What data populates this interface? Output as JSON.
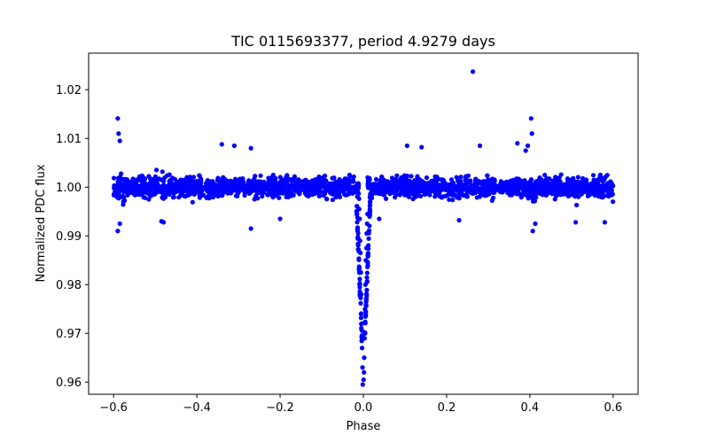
{
  "chart_data": {
    "type": "scatter",
    "title": "TIC 0115693377, period 4.9279 days",
    "xlabel": "Phase",
    "ylabel": "Normalized PDC flux",
    "xlim": [
      -0.66,
      0.66
    ],
    "ylim": [
      0.9575,
      1.0275
    ],
    "x_ticks": [
      -0.6,
      -0.4,
      -0.2,
      0.0,
      0.2,
      0.4,
      0.6
    ],
    "x_tick_labels": [
      "−0.6",
      "−0.4",
      "−0.2",
      "0.0",
      "0.2",
      "0.4",
      "0.6"
    ],
    "y_ticks": [
      0.96,
      0.97,
      0.98,
      0.99,
      1.0,
      1.01,
      1.02
    ],
    "y_tick_labels": [
      "0.96",
      "0.97",
      "0.98",
      "0.99",
      "1.00",
      "1.01",
      "1.02"
    ],
    "grid": false,
    "legend": null,
    "series": [
      {
        "name": "PDC flux",
        "color": "#0000ff",
        "marker": "circle",
        "baseline": {
          "phase_range": [
            -0.6,
            0.6
          ],
          "flux_center": 1.0,
          "flux_scatter": 0.0025
        },
        "transit": {
          "phase_center": 0.0,
          "phase_halfwidth": 0.018,
          "depth_min_flux": 0.9595
        },
        "notable_points": [
          {
            "x": 0.263,
            "y": 1.0237
          },
          {
            "x": -0.59,
            "y": 1.0141
          },
          {
            "x": -0.588,
            "y": 1.011
          },
          {
            "x": -0.585,
            "y": 1.0095
          },
          {
            "x": 0.403,
            "y": 1.0141
          },
          {
            "x": 0.405,
            "y": 1.011
          },
          {
            "x": 0.395,
            "y": 1.0085
          },
          {
            "x": 0.39,
            "y": 1.0075
          },
          {
            "x": 0.37,
            "y": 1.009
          },
          {
            "x": -0.34,
            "y": 1.0088
          },
          {
            "x": -0.31,
            "y": 1.0085
          },
          {
            "x": -0.27,
            "y": 1.008
          },
          {
            "x": 0.105,
            "y": 1.0085
          },
          {
            "x": 0.14,
            "y": 1.0082
          },
          {
            "x": 0.28,
            "y": 1.0085
          },
          {
            "x": -0.59,
            "y": 0.991
          },
          {
            "x": -0.585,
            "y": 0.9925
          },
          {
            "x": 0.407,
            "y": 0.991
          },
          {
            "x": 0.413,
            "y": 0.9925
          },
          {
            "x": -0.27,
            "y": 0.9915
          },
          {
            "x": 0.58,
            "y": 0.9928
          },
          {
            "x": -0.48,
            "y": 0.9928
          },
          {
            "x": -0.485,
            "y": 0.993
          },
          {
            "x": 0.51,
            "y": 0.9928
          },
          {
            "x": 0.038,
            "y": 0.9935
          },
          {
            "x": -0.2,
            "y": 0.9935
          },
          {
            "x": 0.23,
            "y": 0.9932
          },
          {
            "x": -0.0015,
            "y": 0.9595
          },
          {
            "x": 0.0005,
            "y": 0.9605
          },
          {
            "x": 0.0015,
            "y": 0.962
          },
          {
            "x": -0.002,
            "y": 0.963
          },
          {
            "x": 0.002,
            "y": 0.965
          },
          {
            "x": -0.003,
            "y": 0.967
          },
          {
            "x": 0.003,
            "y": 0.969
          },
          {
            "x": -0.004,
            "y": 0.972
          },
          {
            "x": 0.004,
            "y": 0.975
          },
          {
            "x": -0.005,
            "y": 0.978
          },
          {
            "x": 0.005,
            "y": 0.98
          },
          {
            "x": -0.006,
            "y": 0.9825
          },
          {
            "x": 0.006,
            "y": 0.985
          },
          {
            "x": -0.007,
            "y": 0.9865
          },
          {
            "x": 0.0075,
            "y": 0.9875
          },
          {
            "x": -0.008,
            "y": 0.989
          },
          {
            "x": 0.008,
            "y": 0.9905
          },
          {
            "x": 0.009,
            "y": 0.9925
          },
          {
            "x": -0.009,
            "y": 0.9935
          },
          {
            "x": 0.01,
            "y": 0.9945
          },
          {
            "x": -0.01,
            "y": 0.9955
          }
        ]
      }
    ]
  }
}
